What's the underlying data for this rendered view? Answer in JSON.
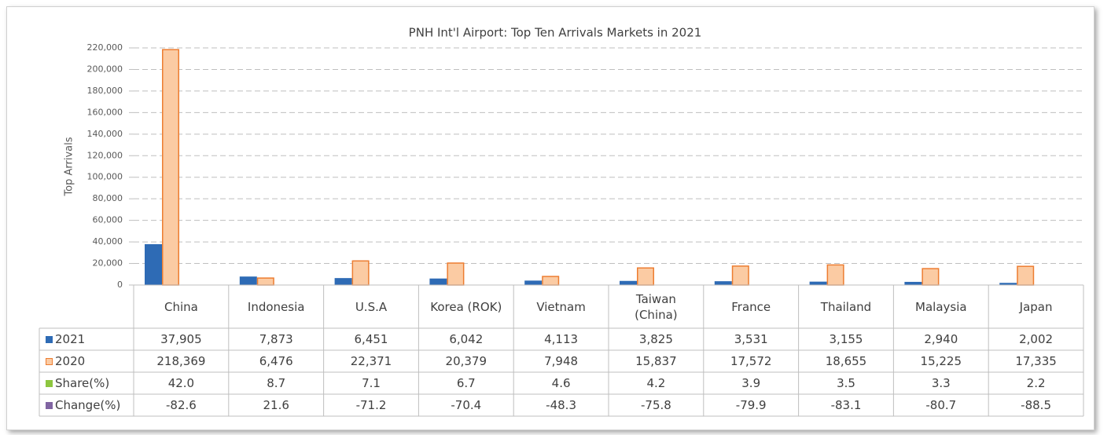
{
  "chart_data": {
    "type": "bar",
    "title": "PNH Int'l Airport: Top Ten Arrivals Markets in 2021",
    "y_label": "Top Arrivals",
    "categories": [
      "China",
      "Indonesia",
      "U.S.A",
      "Korea (ROK)",
      "Vietnam",
      "Taiwan (China)",
      "France",
      "Thailand",
      "Malaysia",
      "Japan"
    ],
    "series": [
      {
        "name": "2021",
        "color": "#2e6bb5",
        "values": [
          37905,
          7873,
          6451,
          6042,
          4113,
          3825,
          3531,
          3155,
          2940,
          2002
        ],
        "value_labels": [
          "37,905",
          "7,873",
          "6,451",
          "6,042",
          "4,113",
          "3,825",
          "3,531",
          "3,155",
          "2,940",
          "2,002"
        ]
      },
      {
        "name": "2020",
        "color": "#ed7d31",
        "values": [
          218369,
          6476,
          22371,
          20379,
          7948,
          15837,
          17572,
          18655,
          15225,
          17335
        ],
        "value_labels": [
          "218,369",
          "6,476",
          "22,371",
          "20,379",
          "7,948",
          "15,837",
          "17,572",
          "18,655",
          "15,225",
          "17,335"
        ]
      }
    ],
    "data_table": [
      {
        "name": "Share(%)",
        "color": "#8dc63f",
        "values": [
          42.0,
          8.7,
          7.1,
          6.7,
          4.6,
          4.2,
          3.9,
          3.5,
          3.3,
          2.2
        ],
        "value_labels": [
          "42.0",
          "8.7",
          "7.1",
          "6.7",
          "4.6",
          "4.2",
          "3.9",
          "3.5",
          "3.3",
          "2.2"
        ]
      },
      {
        "name": "Change(%)",
        "color": "#8064a2",
        "values": [
          -82.6,
          21.6,
          -71.2,
          -70.4,
          -48.3,
          -75.8,
          -79.9,
          -83.1,
          -80.7,
          -88.5
        ]
      }
    ],
    "ylim": [
      0,
      220000
    ],
    "yticks": [
      0,
      {
        "value": 20000,
        "label": "20,000"
      },
      {
        "value": 40000,
        "label": "40,000"
      },
      {
        "value": 60000,
        "label": "60,000"
      },
      {
        "value": 80000,
        "label": "80,000"
      },
      {
        "value": 100000,
        "label": "100,000"
      },
      {
        "value": 120000,
        "label": "120,000"
      },
      {
        "value": 140000,
        "label": "140,000"
      },
      {
        "value": 160000,
        "label": "160,000"
      },
      {
        "value": 180000,
        "label": "180,000"
      },
      {
        "value": 200000,
        "label": "200,000"
      },
      {
        "value": 220000,
        "label": "220,000"
      }
    ],
    "grid": true
  }
}
